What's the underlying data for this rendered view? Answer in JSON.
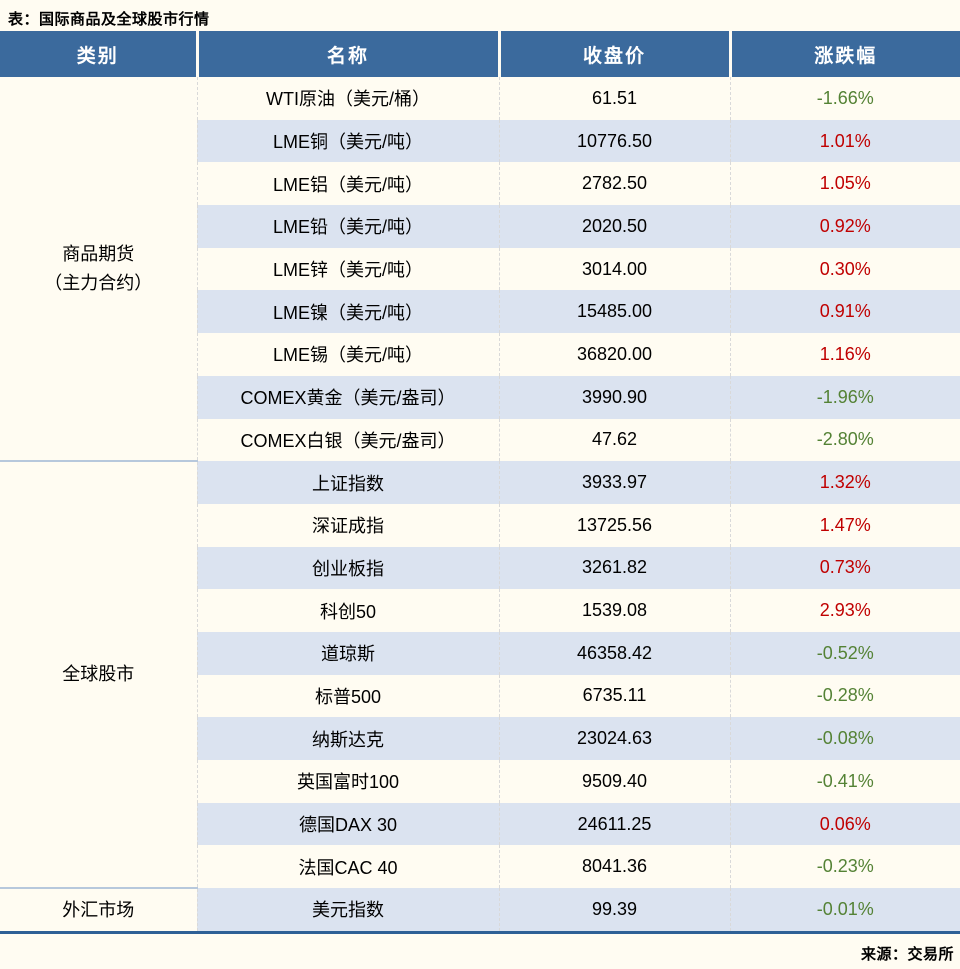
{
  "page": {
    "title": "表：国际商品及全球股市行情",
    "source": "来源：交易所"
  },
  "colors": {
    "page_bg": "#fffcf2",
    "header_bg": "#3b6a9d",
    "header_text": "#ffffff",
    "stripe_bg": "#dbe3f0",
    "up_color": "#c00000",
    "down_color": "#548235",
    "bottom_border": "#2e6096",
    "cat_divider": "#b7c8dc"
  },
  "chart_data": {
    "type": "table",
    "title": "表：国际商品及全球股市行情",
    "source": "来源：交易所",
    "columns": [
      "类别",
      "名称",
      "收盘价",
      "涨跌幅"
    ],
    "groups": [
      {
        "category_lines": [
          "商品期货",
          "（主力合约）"
        ],
        "rows": [
          {
            "name": "WTI原油（美元/桶）",
            "close": "61.51",
            "change": "-1.66%",
            "trend": "down"
          },
          {
            "name": "LME铜（美元/吨）",
            "close": "10776.50",
            "change": "1.01%",
            "trend": "up"
          },
          {
            "name": "LME铝（美元/吨）",
            "close": "2782.50",
            "change": "1.05%",
            "trend": "up"
          },
          {
            "name": "LME铅（美元/吨）",
            "close": "2020.50",
            "change": "0.92%",
            "trend": "up"
          },
          {
            "name": "LME锌（美元/吨）",
            "close": "3014.00",
            "change": "0.30%",
            "trend": "up"
          },
          {
            "name": "LME镍（美元/吨）",
            "close": "15485.00",
            "change": "0.91%",
            "trend": "up"
          },
          {
            "name": "LME锡（美元/吨）",
            "close": "36820.00",
            "change": "1.16%",
            "trend": "up"
          },
          {
            "name": "COMEX黄金（美元/盎司）",
            "close": "3990.90",
            "change": "-1.96%",
            "trend": "down"
          },
          {
            "name": "COMEX白银（美元/盎司）",
            "close": "47.62",
            "change": "-2.80%",
            "trend": "down"
          }
        ]
      },
      {
        "category_lines": [
          "全球股市"
        ],
        "rows": [
          {
            "name": "上证指数",
            "close": "3933.97",
            "change": "1.32%",
            "trend": "up"
          },
          {
            "name": "深证成指",
            "close": "13725.56",
            "change": "1.47%",
            "trend": "up"
          },
          {
            "name": "创业板指",
            "close": "3261.82",
            "change": "0.73%",
            "trend": "up"
          },
          {
            "name": "科创50",
            "close": "1539.08",
            "change": "2.93%",
            "trend": "up"
          },
          {
            "name": "道琼斯",
            "close": "46358.42",
            "change": "-0.52%",
            "trend": "down"
          },
          {
            "name": "标普500",
            "close": "6735.11",
            "change": "-0.28%",
            "trend": "down"
          },
          {
            "name": "纳斯达克",
            "close": "23024.63",
            "change": "-0.08%",
            "trend": "down"
          },
          {
            "name": "英国富时100",
            "close": "9509.40",
            "change": "-0.41%",
            "trend": "down"
          },
          {
            "name": "德国DAX 30",
            "close": "24611.25",
            "change": "0.06%",
            "trend": "up"
          },
          {
            "name": "法国CAC 40",
            "close": "8041.36",
            "change": "-0.23%",
            "trend": "down"
          }
        ]
      },
      {
        "category_lines": [
          "外汇市场"
        ],
        "rows": [
          {
            "name": "美元指数",
            "close": "99.39",
            "change": "-0.01%",
            "trend": "down"
          }
        ]
      }
    ]
  }
}
